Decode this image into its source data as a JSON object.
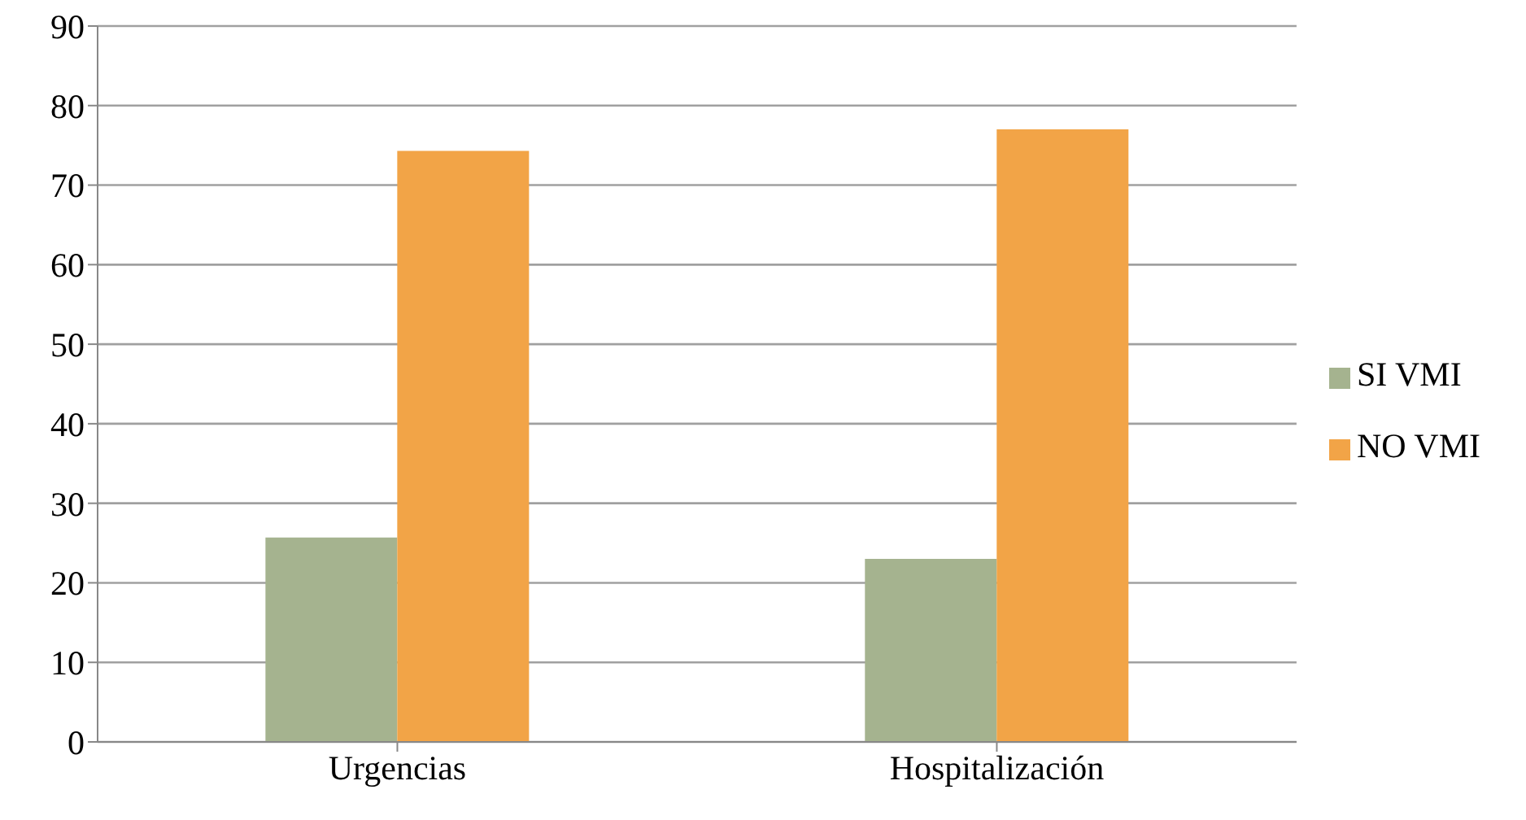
{
  "chart_data": {
    "type": "bar",
    "categories": [
      "Urgencias",
      "Hospitalización"
    ],
    "series": [
      {
        "name": "SI VMI",
        "color": "#a5b38f",
        "values": [
          25.7,
          23.0
        ]
      },
      {
        "name": "NO VMI",
        "color": "#f2a447",
        "values": [
          74.3,
          77.0
        ]
      }
    ],
    "ylim": [
      0,
      90
    ],
    "yticks": [
      0,
      10,
      20,
      30,
      40,
      50,
      60,
      70,
      80,
      90
    ],
    "grid": "y",
    "legend": "right"
  }
}
